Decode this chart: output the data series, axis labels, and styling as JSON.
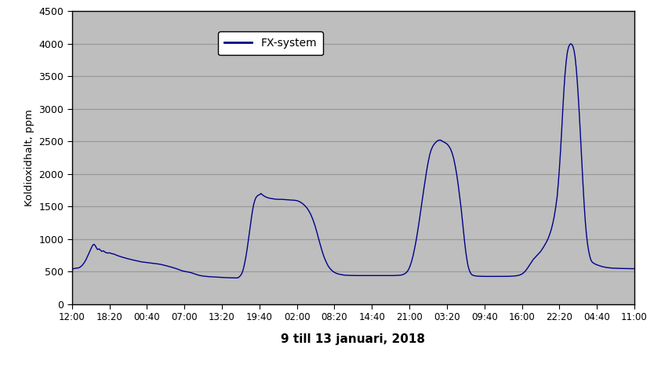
{
  "ylabel": "Koldioxidhalt, ppm",
  "xlabel": "9 till 13 januari, 2018",
  "legend_label": "FX-system",
  "line_color": "#00008B",
  "bg_color": "#BEBEBE",
  "grid_color": "#999999",
  "outer_bg": "#FFFFFF",
  "ylim": [
    0,
    4500
  ],
  "yticks": [
    0,
    500,
    1000,
    1500,
    2000,
    2500,
    3000,
    3500,
    4000,
    4500
  ],
  "xtick_labels": [
    "12:00",
    "18:20",
    "00:40",
    "07:00",
    "13:20",
    "19:40",
    "02:00",
    "08:20",
    "14:40",
    "21:00",
    "03:20",
    "09:40",
    "16:00",
    "22:20",
    "04:40",
    "11:00"
  ],
  "curve": [
    [
      0.0,
      540
    ],
    [
      0.04,
      545
    ],
    [
      0.08,
      550
    ],
    [
      0.12,
      555
    ],
    [
      0.18,
      558
    ],
    [
      0.22,
      570
    ],
    [
      0.28,
      600
    ],
    [
      0.33,
      640
    ],
    [
      0.38,
      690
    ],
    [
      0.42,
      740
    ],
    [
      0.46,
      790
    ],
    [
      0.5,
      840
    ],
    [
      0.53,
      880
    ],
    [
      0.56,
      910
    ],
    [
      0.59,
      920
    ],
    [
      0.62,
      900
    ],
    [
      0.65,
      870
    ],
    [
      0.68,
      840
    ],
    [
      0.72,
      850
    ],
    [
      0.76,
      830
    ],
    [
      0.8,
      810
    ],
    [
      0.84,
      820
    ],
    [
      0.88,
      800
    ],
    [
      0.92,
      790
    ],
    [
      0.96,
      785
    ],
    [
      1.0,
      790
    ],
    [
      1.04,
      780
    ],
    [
      1.08,
      775
    ],
    [
      1.12,
      770
    ],
    [
      1.16,
      760
    ],
    [
      1.2,
      750
    ],
    [
      1.25,
      740
    ],
    [
      1.3,
      730
    ],
    [
      1.36,
      720
    ],
    [
      1.42,
      710
    ],
    [
      1.48,
      700
    ],
    [
      1.55,
      690
    ],
    [
      1.62,
      680
    ],
    [
      1.7,
      670
    ],
    [
      1.78,
      660
    ],
    [
      1.86,
      650
    ],
    [
      1.93,
      645
    ],
    [
      2.0,
      640
    ],
    [
      2.08,
      635
    ],
    [
      2.15,
      630
    ],
    [
      2.22,
      625
    ],
    [
      2.3,
      618
    ],
    [
      2.38,
      610
    ],
    [
      2.45,
      600
    ],
    [
      2.52,
      590
    ],
    [
      2.58,
      580
    ],
    [
      2.65,
      570
    ],
    [
      2.72,
      558
    ],
    [
      2.79,
      545
    ],
    [
      2.86,
      530
    ],
    [
      2.93,
      515
    ],
    [
      3.0,
      505
    ],
    [
      3.07,
      498
    ],
    [
      3.14,
      490
    ],
    [
      3.2,
      480
    ],
    [
      3.26,
      468
    ],
    [
      3.32,
      455
    ],
    [
      3.38,
      445
    ],
    [
      3.44,
      438
    ],
    [
      3.5,
      432
    ],
    [
      3.56,
      428
    ],
    [
      3.62,
      425
    ],
    [
      3.68,
      422
    ],
    [
      3.74,
      420
    ],
    [
      3.8,
      418
    ],
    [
      3.86,
      416
    ],
    [
      3.92,
      414
    ],
    [
      3.98,
      412
    ],
    [
      4.04,
      410
    ],
    [
      4.1,
      408
    ],
    [
      4.16,
      407
    ],
    [
      4.22,
      406
    ],
    [
      4.28,
      405
    ],
    [
      4.34,
      404
    ],
    [
      4.4,
      403
    ],
    [
      4.44,
      410
    ],
    [
      4.48,
      430
    ],
    [
      4.52,
      460
    ],
    [
      4.55,
      500
    ],
    [
      4.58,
      560
    ],
    [
      4.61,
      640
    ],
    [
      4.64,
      730
    ],
    [
      4.67,
      840
    ],
    [
      4.7,
      960
    ],
    [
      4.73,
      1090
    ],
    [
      4.76,
      1220
    ],
    [
      4.79,
      1340
    ],
    [
      4.82,
      1450
    ],
    [
      4.85,
      1540
    ],
    [
      4.88,
      1600
    ],
    [
      4.91,
      1640
    ],
    [
      4.94,
      1660
    ],
    [
      4.97,
      1675
    ],
    [
      5.0,
      1680
    ],
    [
      5.02,
      1690
    ],
    [
      5.04,
      1700
    ],
    [
      5.06,
      1690
    ],
    [
      5.08,
      1680
    ],
    [
      5.1,
      1670
    ],
    [
      5.13,
      1660
    ],
    [
      5.16,
      1650
    ],
    [
      5.2,
      1640
    ],
    [
      5.25,
      1630
    ],
    [
      5.3,
      1625
    ],
    [
      5.35,
      1620
    ],
    [
      5.4,
      1615
    ],
    [
      5.45,
      1612
    ],
    [
      5.5,
      1610
    ],
    [
      5.55,
      1610
    ],
    [
      5.6,
      1610
    ],
    [
      5.65,
      1608
    ],
    [
      5.7,
      1606
    ],
    [
      5.75,
      1605
    ],
    [
      5.8,
      1602
    ],
    [
      5.85,
      1600
    ],
    [
      5.9,
      1598
    ],
    [
      5.95,
      1595
    ],
    [
      6.0,
      1590
    ],
    [
      6.05,
      1580
    ],
    [
      6.1,
      1565
    ],
    [
      6.15,
      1545
    ],
    [
      6.2,
      1520
    ],
    [
      6.25,
      1490
    ],
    [
      6.3,
      1450
    ],
    [
      6.36,
      1390
    ],
    [
      6.42,
      1310
    ],
    [
      6.48,
      1210
    ],
    [
      6.54,
      1090
    ],
    [
      6.6,
      960
    ],
    [
      6.66,
      840
    ],
    [
      6.72,
      730
    ],
    [
      6.78,
      650
    ],
    [
      6.83,
      590
    ],
    [
      6.88,
      550
    ],
    [
      6.93,
      520
    ],
    [
      6.97,
      500
    ],
    [
      7.01,
      486
    ],
    [
      7.05,
      475
    ],
    [
      7.1,
      465
    ],
    [
      7.15,
      458
    ],
    [
      7.2,
      453
    ],
    [
      7.25,
      448
    ],
    [
      7.3,
      445
    ],
    [
      7.36,
      443
    ],
    [
      7.42,
      442
    ],
    [
      7.48,
      441
    ],
    [
      7.55,
      440
    ],
    [
      7.62,
      440
    ],
    [
      7.7,
      440
    ],
    [
      7.78,
      440
    ],
    [
      7.86,
      440
    ],
    [
      7.94,
      440
    ],
    [
      8.02,
      440
    ],
    [
      8.1,
      440
    ],
    [
      8.18,
      440
    ],
    [
      8.26,
      440
    ],
    [
      8.34,
      440
    ],
    [
      8.42,
      440
    ],
    [
      8.5,
      440
    ],
    [
      8.58,
      440
    ],
    [
      8.66,
      442
    ],
    [
      8.74,
      445
    ],
    [
      8.8,
      450
    ],
    [
      8.85,
      460
    ],
    [
      8.9,
      478
    ],
    [
      8.94,
      500
    ],
    [
      8.98,
      535
    ],
    [
      9.02,
      590
    ],
    [
      9.06,
      660
    ],
    [
      9.1,
      750
    ],
    [
      9.14,
      860
    ],
    [
      9.18,
      980
    ],
    [
      9.22,
      1120
    ],
    [
      9.26,
      1270
    ],
    [
      9.3,
      1430
    ],
    [
      9.34,
      1590
    ],
    [
      9.38,
      1750
    ],
    [
      9.42,
      1900
    ],
    [
      9.46,
      2050
    ],
    [
      9.5,
      2180
    ],
    [
      9.54,
      2290
    ],
    [
      9.58,
      2370
    ],
    [
      9.62,
      2420
    ],
    [
      9.65,
      2450
    ],
    [
      9.68,
      2470
    ],
    [
      9.71,
      2490
    ],
    [
      9.74,
      2505
    ],
    [
      9.77,
      2515
    ],
    [
      9.8,
      2520
    ],
    [
      9.83,
      2520
    ],
    [
      9.86,
      2510
    ],
    [
      9.89,
      2500
    ],
    [
      9.92,
      2490
    ],
    [
      9.95,
      2480
    ],
    [
      9.98,
      2470
    ],
    [
      10.02,
      2450
    ],
    [
      10.06,
      2420
    ],
    [
      10.1,
      2380
    ],
    [
      10.14,
      2320
    ],
    [
      10.18,
      2240
    ],
    [
      10.22,
      2130
    ],
    [
      10.26,
      2000
    ],
    [
      10.3,
      1840
    ],
    [
      10.34,
      1660
    ],
    [
      10.38,
      1470
    ],
    [
      10.41,
      1300
    ],
    [
      10.44,
      1130
    ],
    [
      10.47,
      970
    ],
    [
      10.5,
      820
    ],
    [
      10.53,
      700
    ],
    [
      10.56,
      600
    ],
    [
      10.59,
      535
    ],
    [
      10.62,
      490
    ],
    [
      10.65,
      462
    ],
    [
      10.68,
      448
    ],
    [
      10.72,
      440
    ],
    [
      10.76,
      435
    ],
    [
      10.8,
      432
    ],
    [
      10.85,
      430
    ],
    [
      10.9,
      429
    ],
    [
      10.95,
      428
    ],
    [
      11.0,
      428
    ],
    [
      11.06,
      427
    ],
    [
      11.12,
      427
    ],
    [
      11.18,
      426
    ],
    [
      11.25,
      426
    ],
    [
      11.32,
      426
    ],
    [
      11.4,
      426
    ],
    [
      11.48,
      426
    ],
    [
      11.56,
      427
    ],
    [
      11.64,
      428
    ],
    [
      11.72,
      430
    ],
    [
      11.8,
      433
    ],
    [
      11.86,
      438
    ],
    [
      11.92,
      445
    ],
    [
      11.97,
      455
    ],
    [
      12.02,
      470
    ],
    [
      12.06,
      490
    ],
    [
      12.1,
      515
    ],
    [
      12.14,
      545
    ],
    [
      12.18,
      580
    ],
    [
      12.22,
      615
    ],
    [
      12.26,
      650
    ],
    [
      12.3,
      685
    ],
    [
      12.34,
      710
    ],
    [
      12.38,
      735
    ],
    [
      12.42,
      760
    ],
    [
      12.46,
      785
    ],
    [
      12.5,
      810
    ],
    [
      12.54,
      845
    ],
    [
      12.58,
      880
    ],
    [
      12.62,
      920
    ],
    [
      12.66,
      960
    ],
    [
      12.7,
      1010
    ],
    [
      12.74,
      1070
    ],
    [
      12.78,
      1140
    ],
    [
      12.82,
      1230
    ],
    [
      12.86,
      1340
    ],
    [
      12.9,
      1480
    ],
    [
      12.94,
      1650
    ],
    [
      12.97,
      1850
    ],
    [
      13.0,
      2080
    ],
    [
      13.03,
      2350
    ],
    [
      13.06,
      2650
    ],
    [
      13.09,
      2980
    ],
    [
      13.12,
      3280
    ],
    [
      13.15,
      3530
    ],
    [
      13.18,
      3720
    ],
    [
      13.21,
      3860
    ],
    [
      13.24,
      3940
    ],
    [
      13.27,
      3980
    ],
    [
      13.3,
      4000
    ],
    [
      13.33,
      3990
    ],
    [
      13.36,
      3960
    ],
    [
      13.39,
      3900
    ],
    [
      13.42,
      3790
    ],
    [
      13.45,
      3620
    ],
    [
      13.48,
      3400
    ],
    [
      13.51,
      3130
    ],
    [
      13.54,
      2830
    ],
    [
      13.57,
      2500
    ],
    [
      13.6,
      2170
    ],
    [
      13.63,
      1840
    ],
    [
      13.66,
      1540
    ],
    [
      13.69,
      1280
    ],
    [
      13.72,
      1080
    ],
    [
      13.75,
      930
    ],
    [
      13.78,
      820
    ],
    [
      13.81,
      740
    ],
    [
      13.84,
      680
    ],
    [
      13.87,
      650
    ],
    [
      13.9,
      635
    ],
    [
      13.93,
      625
    ],
    [
      13.96,
      615
    ],
    [
      14.0,
      605
    ],
    [
      14.05,
      595
    ],
    [
      14.1,
      585
    ],
    [
      14.16,
      575
    ],
    [
      14.22,
      568
    ],
    [
      14.28,
      562
    ],
    [
      14.35,
      558
    ],
    [
      14.42,
      554
    ],
    [
      14.5,
      552
    ],
    [
      14.58,
      550
    ],
    [
      14.66,
      549
    ],
    [
      14.74,
      548
    ],
    [
      14.82,
      547
    ],
    [
      14.9,
      546
    ],
    [
      14.98,
      545
    ],
    [
      15.06,
      544
    ],
    [
      15.15,
      543
    ],
    [
      15.25,
      542
    ],
    [
      15.35,
      541
    ],
    [
      15.45,
      540
    ],
    [
      15.55,
      540
    ],
    [
      15.65,
      540
    ],
    [
      15.75,
      539
    ],
    [
      15.85,
      539
    ],
    [
      15.95,
      539
    ],
    [
      16.0,
      539
    ]
  ]
}
